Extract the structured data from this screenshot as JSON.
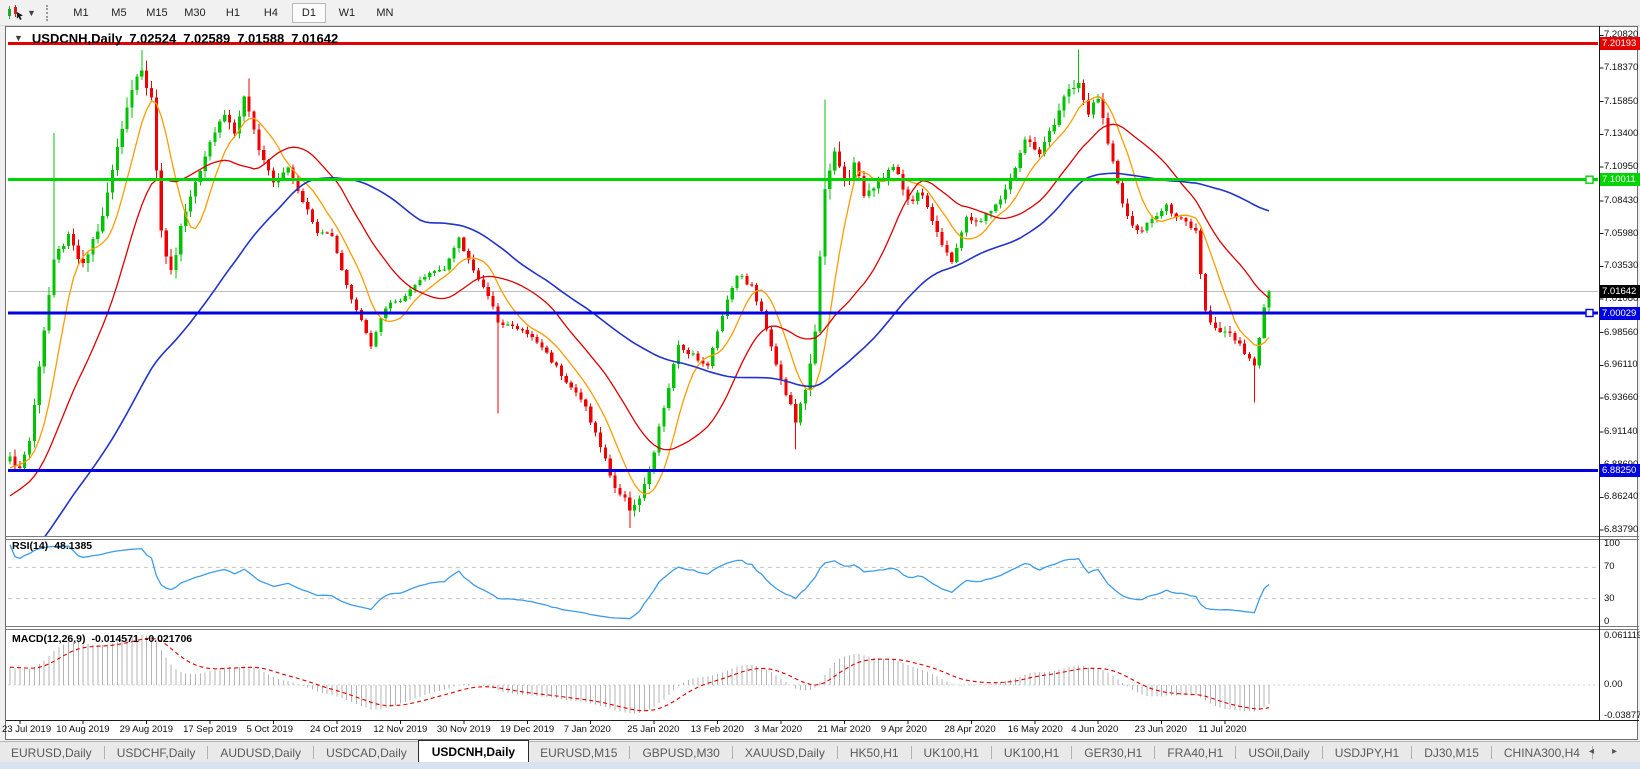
{
  "toolbar": {
    "dropdown_caret": "▼",
    "timeframes": [
      {
        "label": "M1",
        "active": false
      },
      {
        "label": "M5",
        "active": false
      },
      {
        "label": "M15",
        "active": false
      },
      {
        "label": "M30",
        "active": false
      },
      {
        "label": "H1",
        "active": false
      },
      {
        "label": "H4",
        "active": false
      },
      {
        "label": "D1",
        "active": true
      },
      {
        "label": "W1",
        "active": false
      },
      {
        "label": "MN",
        "active": false
      }
    ]
  },
  "chart_window": {
    "title": {
      "collapse_glyph": "▼",
      "symbol": "USDCNH,Daily",
      "open": "7.02524",
      "high": "7.02589",
      "low": "7.01588",
      "close": "7.01642"
    },
    "indicators": {
      "rsi_label": "RSI(14)",
      "rsi_value": "48.1385",
      "macd_label": "MACD(12,26,9)",
      "macd_value_main": "-0.014571",
      "macd_value_signal": "-0.021706"
    }
  },
  "chart_data": {
    "type": "candlestick",
    "symbol": "USDCNH",
    "timeframe": "Daily",
    "current_price": {
      "value": 7.01642,
      "label": "7.01642",
      "line_color": "#bdbdbd",
      "badge_bg": "#000000"
    },
    "price_axis": {
      "ticks": [
        "7.20820",
        "7.18370",
        "7.15850",
        "7.13400",
        "7.10950",
        "7.08430",
        "7.05980",
        "7.03530",
        "7.01080",
        "6.98560",
        "6.96110",
        "6.93660",
        "6.91140",
        "6.88690",
        "6.86240",
        "6.83790"
      ]
    },
    "date_axis": {
      "labels": [
        "23 Jul 2019",
        "10 Aug 2019",
        "29 Aug 2019",
        "17 Sep 2019",
        "5 Oct 2019",
        "24 Oct 2019",
        "12 Nov 2019",
        "30 Nov 2019",
        "19 Dec 2019",
        "7 Jan 2020",
        "25 Jan 2020",
        "13 Feb 2020",
        "3 Mar 2020",
        "21 Mar 2020",
        "9 Apr 2020",
        "28 Apr 2020",
        "16 May 2020",
        "4 Jun 2020",
        "23 Jun 2020",
        "11 Jul 2020"
      ]
    },
    "horizontal_lines": [
      {
        "price": 7.20193,
        "label": "7.20193",
        "color": "#e60000",
        "thickness": 3,
        "handle": false
      },
      {
        "price": 7.10011,
        "label": "7.10011",
        "color": "#00d400",
        "thickness": 3,
        "handle": true
      },
      {
        "price": 7.00029,
        "label": "7.00029",
        "color": "#0000e0",
        "thickness": 3,
        "handle": true
      },
      {
        "price": 6.8825,
        "label": "6.88250",
        "color": "#0000e0",
        "thickness": 3,
        "handle": false
      }
    ],
    "candles": {
      "count": 259,
      "up_color": "#00c400",
      "down_color": "#f00000",
      "close_anchors": [
        [
          0,
          6.893
        ],
        [
          2,
          6.882
        ],
        [
          4,
          6.905
        ],
        [
          6,
          6.96
        ],
        [
          9,
          7.04
        ],
        [
          12,
          7.06
        ],
        [
          15,
          7.035
        ],
        [
          18,
          7.06
        ],
        [
          21,
          7.11
        ],
        [
          24,
          7.155
        ],
        [
          27,
          7.185
        ],
        [
          29,
          7.16
        ],
        [
          31,
          7.06
        ],
        [
          33,
          7.03
        ],
        [
          35,
          7.065
        ],
        [
          38,
          7.1
        ],
        [
          41,
          7.13
        ],
        [
          44,
          7.15
        ],
        [
          46,
          7.135
        ],
        [
          48,
          7.16
        ],
        [
          51,
          7.125
        ],
        [
          54,
          7.1
        ],
        [
          57,
          7.11
        ],
        [
          60,
          7.085
        ],
        [
          63,
          7.06
        ],
        [
          66,
          7.06
        ],
        [
          69,
          7.02
        ],
        [
          72,
          6.995
        ],
        [
          74,
          6.975
        ],
        [
          77,
          7.005
        ],
        [
          80,
          7.01
        ],
        [
          83,
          7.02
        ],
        [
          86,
          7.03
        ],
        [
          89,
          7.035
        ],
        [
          92,
          7.055
        ],
        [
          94,
          7.04
        ],
        [
          97,
          7.02
        ],
        [
          100,
          6.995
        ],
        [
          103,
          6.99
        ],
        [
          106,
          6.985
        ],
        [
          109,
          6.975
        ],
        [
          112,
          6.96
        ],
        [
          115,
          6.945
        ],
        [
          118,
          6.93
        ],
        [
          121,
          6.9
        ],
        [
          124,
          6.87
        ],
        [
          127,
          6.855
        ],
        [
          129,
          6.862
        ],
        [
          131,
          6.88
        ],
        [
          134,
          6.93
        ],
        [
          137,
          6.975
        ],
        [
          140,
          6.97
        ],
        [
          143,
          6.96
        ],
        [
          146,
          7.0
        ],
        [
          149,
          7.03
        ],
        [
          152,
          7.02
        ],
        [
          155,
          6.99
        ],
        [
          158,
          6.95
        ],
        [
          161,
          6.92
        ],
        [
          163,
          6.94
        ],
        [
          165,
          6.99
        ],
        [
          167,
          7.09
        ],
        [
          169,
          7.12
        ],
        [
          171,
          7.1
        ],
        [
          173,
          7.11
        ],
        [
          175,
          7.09
        ],
        [
          178,
          7.1
        ],
        [
          181,
          7.11
        ],
        [
          184,
          7.085
        ],
        [
          187,
          7.09
        ],
        [
          190,
          7.06
        ],
        [
          193,
          7.04
        ],
        [
          196,
          7.07
        ],
        [
          199,
          7.07
        ],
        [
          202,
          7.08
        ],
        [
          205,
          7.1
        ],
        [
          208,
          7.13
        ],
        [
          211,
          7.12
        ],
        [
          214,
          7.14
        ],
        [
          217,
          7.17
        ],
        [
          219,
          7.17
        ],
        [
          221,
          7.15
        ],
        [
          223,
          7.16
        ],
        [
          225,
          7.13
        ],
        [
          228,
          7.08
        ],
        [
          231,
          7.06
        ],
        [
          234,
          7.07
        ],
        [
          237,
          7.08
        ],
        [
          240,
          7.07
        ],
        [
          243,
          7.06
        ],
        [
          245,
          7.0
        ],
        [
          247,
          6.99
        ],
        [
          250,
          6.985
        ],
        [
          253,
          6.97
        ],
        [
          255,
          6.96
        ],
        [
          257,
          7.005
        ],
        [
          258,
          7.01642
        ]
      ],
      "vol_anchors": [
        [
          0,
          0.006
        ],
        [
          10,
          0.008
        ],
        [
          27,
          0.009
        ],
        [
          34,
          0.007
        ],
        [
          45,
          0.006
        ],
        [
          60,
          0.004
        ],
        [
          80,
          0.0035
        ],
        [
          95,
          0.004
        ],
        [
          110,
          0.0035
        ],
        [
          122,
          0.005
        ],
        [
          130,
          0.006
        ],
        [
          140,
          0.004
        ],
        [
          152,
          0.004
        ],
        [
          160,
          0.006
        ],
        [
          168,
          0.01
        ],
        [
          175,
          0.006
        ],
        [
          185,
          0.005
        ],
        [
          200,
          0.004
        ],
        [
          210,
          0.005
        ],
        [
          218,
          0.007
        ],
        [
          228,
          0.005
        ],
        [
          240,
          0.0035
        ],
        [
          248,
          0.005
        ],
        [
          258,
          0.004
        ]
      ],
      "wick_events": [
        {
          "i": 9,
          "high": 7.135
        },
        {
          "i": 27,
          "high": 7.197
        },
        {
          "i": 49,
          "high": 7.176
        },
        {
          "i": 100,
          "low": 6.925
        },
        {
          "i": 127,
          "low": 6.8395
        },
        {
          "i": 161,
          "low": 6.898
        },
        {
          "i": 167,
          "high": 7.16
        },
        {
          "i": 219,
          "high": 7.1975
        },
        {
          "i": 255,
          "low": 6.9335
        }
      ]
    },
    "moving_averages": [
      {
        "name": "ma-fast",
        "period": 8,
        "color": "#ff9c00",
        "width": 1.3
      },
      {
        "name": "ma-mid",
        "period": 21,
        "color": "#dd0000",
        "width": 1.3
      },
      {
        "name": "ma-slow",
        "period": 55,
        "color": "#2233cc",
        "width": 1.6
      }
    ],
    "rsi": {
      "period": 14,
      "color": "#3e9ce8",
      "levels": [
        70,
        30
      ],
      "scale_labels": [
        "100",
        "70",
        "30",
        "0"
      ],
      "scale_values": [
        100,
        70,
        30,
        0
      ],
      "current": 48.1385
    },
    "macd": {
      "fast": 12,
      "slow": 26,
      "signal": 9,
      "histogram_color": "#b4b4b4",
      "signal_color": "#e00000",
      "scale_labels": [
        "0.061119",
        "0.00",
        "-0.038777"
      ],
      "scale_values": [
        0.061119,
        0,
        -0.0387772
      ],
      "main_value": -0.014571,
      "signal_value": -0.021706
    }
  },
  "tab_bar": {
    "scroll_left_icon": "◂",
    "scroll_right_icon": "▸",
    "tabs": [
      {
        "label": "EURUSD,Daily",
        "active": false
      },
      {
        "label": "USDCHF,Daily",
        "active": false
      },
      {
        "label": "AUDUSD,Daily",
        "active": false
      },
      {
        "label": "USDCAD,Daily",
        "active": false
      },
      {
        "label": "USDCNH,Daily",
        "active": true
      },
      {
        "label": "EURUSD,M15",
        "active": false
      },
      {
        "label": "GBPUSD,M30",
        "active": false
      },
      {
        "label": "XAUUSD,Daily",
        "active": false
      },
      {
        "label": "HK50,H1",
        "active": false
      },
      {
        "label": "UK100,H1",
        "active": false
      },
      {
        "label": "UK100,H1",
        "active": false
      },
      {
        "label": "GER30,H1",
        "active": false
      },
      {
        "label": "FRA40,H1",
        "active": false
      },
      {
        "label": "USOil,Daily",
        "active": false
      },
      {
        "label": "USDJPY,H1",
        "active": false
      },
      {
        "label": "DJ30,M15",
        "active": false
      },
      {
        "label": "CHINA300,H4",
        "active": false
      }
    ]
  }
}
